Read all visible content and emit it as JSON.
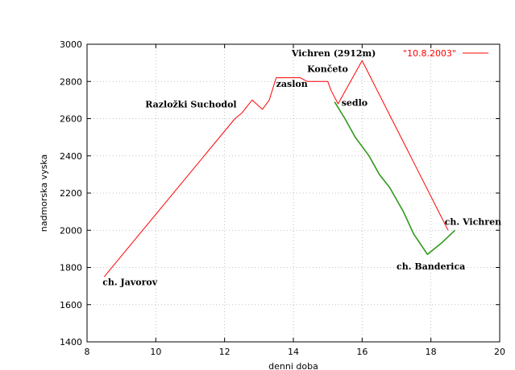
{
  "chart_data": {
    "type": "line",
    "title": "",
    "xlabel": "denni doba",
    "ylabel": "nadmorska vyska",
    "xlim": [
      8,
      20
    ],
    "ylim": [
      1400,
      3000
    ],
    "xticks": [
      8,
      10,
      12,
      14,
      16,
      18,
      20
    ],
    "yticks": [
      1400,
      1600,
      1800,
      2000,
      2200,
      2400,
      2600,
      2800,
      3000
    ],
    "grid": true,
    "legend": "top-right",
    "series": [
      {
        "name": "\"10.8.2003\"",
        "color": "#ff0000",
        "points": [
          [
            8.5,
            1750
          ],
          [
            12.3,
            2600
          ],
          [
            12.5,
            2630
          ],
          [
            12.8,
            2700
          ],
          [
            13.1,
            2650
          ],
          [
            13.3,
            2700
          ],
          [
            13.5,
            2820
          ],
          [
            14.2,
            2820
          ],
          [
            14.4,
            2800
          ],
          [
            15.0,
            2800
          ],
          [
            15.1,
            2750
          ],
          [
            15.3,
            2680
          ],
          [
            16.0,
            2912
          ],
          [
            18.5,
            2000
          ]
        ]
      },
      {
        "name": "",
        "color": "#2e9a1a",
        "points": [
          [
            15.2,
            2690
          ],
          [
            15.5,
            2600
          ],
          [
            15.8,
            2500
          ],
          [
            16.2,
            2400
          ],
          [
            16.5,
            2300
          ],
          [
            16.8,
            2230
          ],
          [
            17.2,
            2100
          ],
          [
            17.5,
            1980
          ],
          [
            17.9,
            1870
          ],
          [
            18.3,
            1930
          ],
          [
            18.7,
            2000
          ]
        ]
      }
    ],
    "annotations": [
      {
        "text": "ch. Javorov",
        "x": 8.45,
        "y": 1705,
        "anchor": "start"
      },
      {
        "text": "Razložki Suchodol",
        "x": 12.35,
        "y": 2660,
        "anchor": "end"
      },
      {
        "text": "zaslon",
        "x": 13.5,
        "y": 2770,
        "anchor": "start"
      },
      {
        "text": "Končeto",
        "x": 14.4,
        "y": 2850,
        "anchor": "start"
      },
      {
        "text": "Vichren (2912m)",
        "x": 16.4,
        "y": 2935,
        "anchor": "end"
      },
      {
        "text": "sedlo",
        "x": 15.4,
        "y": 2670,
        "anchor": "start"
      },
      {
        "text": "ch. Vichren",
        "x": 18.4,
        "y": 2030,
        "anchor": "start"
      },
      {
        "text": "ch. Banderica",
        "x": 17.0,
        "y": 1790,
        "anchor": "start"
      }
    ]
  }
}
